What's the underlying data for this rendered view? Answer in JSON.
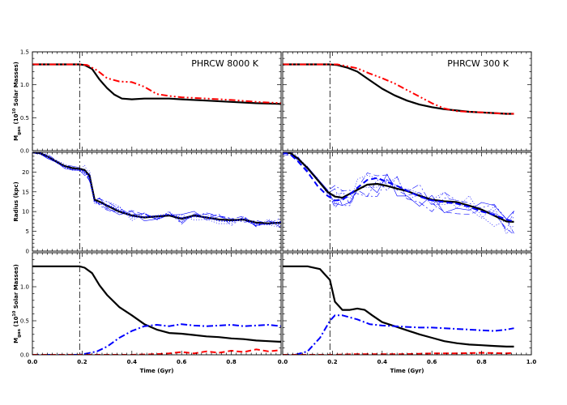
{
  "chart_data": [
    {
      "type": "line",
      "panel": "top-left",
      "title": "PHRCW 8000 K",
      "xlabel": "",
      "ylabel": "M_gas (10^10 Solar Masses)",
      "ylabel_main": "M",
      "ylabel_sub": "gas",
      "ylabel_rest": " (10",
      "ylabel_sup": "10",
      "ylabel_end": " Solar Masses)",
      "xlim": [
        0,
        1.0
      ],
      "ylim": [
        0,
        1.5
      ],
      "yticks": [
        "0.0",
        "0.5",
        "1.0",
        "1.5"
      ],
      "xticks": [],
      "vline": 0.19,
      "series": [
        {
          "color": "#000000",
          "style": "solid",
          "x": [
            0,
            0.05,
            0.1,
            0.15,
            0.19,
            0.21,
            0.24,
            0.27,
            0.3,
            0.33,
            0.36,
            0.4,
            0.45,
            0.5,
            0.55,
            0.6,
            0.7,
            0.8,
            0.9,
            1.0
          ],
          "y": [
            1.31,
            1.31,
            1.31,
            1.31,
            1.31,
            1.3,
            1.24,
            1.08,
            0.95,
            0.85,
            0.79,
            0.78,
            0.79,
            0.79,
            0.79,
            0.78,
            0.76,
            0.74,
            0.72,
            0.71
          ]
        },
        {
          "color": "#ff0000",
          "style": "dashdotdot",
          "x": [
            0,
            0.05,
            0.1,
            0.15,
            0.19,
            0.22,
            0.26,
            0.3,
            0.35,
            0.4,
            0.45,
            0.5,
            0.55,
            0.6,
            0.7,
            0.8,
            0.9,
            1.0
          ],
          "y": [
            1.31,
            1.31,
            1.31,
            1.31,
            1.31,
            1.3,
            1.22,
            1.1,
            1.05,
            1.04,
            0.97,
            0.86,
            0.83,
            0.81,
            0.79,
            0.77,
            0.74,
            0.72
          ]
        }
      ]
    },
    {
      "type": "line",
      "panel": "top-right",
      "title": "PHRCW 300 K",
      "xlabel": "",
      "ylabel": "",
      "xlim": [
        0,
        1.0
      ],
      "ylim": [
        0,
        1.5
      ],
      "yticks": [],
      "xticks": [],
      "vline": 0.19,
      "series": [
        {
          "color": "#000000",
          "style": "solid",
          "x": [
            0,
            0.05,
            0.1,
            0.15,
            0.19,
            0.22,
            0.26,
            0.3,
            0.35,
            0.4,
            0.45,
            0.5,
            0.55,
            0.6,
            0.65,
            0.7,
            0.75,
            0.8,
            0.85,
            0.9,
            0.93
          ],
          "y": [
            1.31,
            1.31,
            1.31,
            1.31,
            1.31,
            1.3,
            1.26,
            1.2,
            1.07,
            0.94,
            0.84,
            0.76,
            0.7,
            0.66,
            0.63,
            0.61,
            0.59,
            0.58,
            0.57,
            0.56,
            0.56
          ]
        },
        {
          "color": "#ff0000",
          "style": "dashdotdot",
          "x": [
            0,
            0.05,
            0.1,
            0.15,
            0.19,
            0.22,
            0.26,
            0.3,
            0.35,
            0.4,
            0.45,
            0.5,
            0.55,
            0.6,
            0.65,
            0.7,
            0.75,
            0.8,
            0.85,
            0.9,
            0.93
          ],
          "y": [
            1.31,
            1.31,
            1.31,
            1.31,
            1.31,
            1.31,
            1.28,
            1.25,
            1.17,
            1.1,
            1.02,
            0.92,
            0.82,
            0.72,
            0.64,
            0.6,
            0.59,
            0.58,
            0.57,
            0.56,
            0.56
          ]
        }
      ]
    },
    {
      "type": "line",
      "panel": "middle-left",
      "title": "",
      "xlabel": "",
      "ylabel": "Radius (kpc)",
      "xlim": [
        0,
        1.0
      ],
      "ylim": [
        0,
        25
      ],
      "yticks": [
        "0",
        "5",
        "10",
        "15",
        "20"
      ],
      "xticks": [],
      "vline": 0.19,
      "series": [
        {
          "color": "#000000",
          "style": "solid",
          "x": [
            0,
            0.03,
            0.06,
            0.1,
            0.13,
            0.16,
            0.19,
            0.21,
            0.23,
            0.25,
            0.27,
            0.3,
            0.35,
            0.4,
            0.45,
            0.5,
            0.55,
            0.6,
            0.65,
            0.7,
            0.75,
            0.8,
            0.85,
            0.9,
            0.95,
            1.0
          ],
          "y": [
            25,
            24.8,
            24,
            22.5,
            21.5,
            21,
            20.8,
            20.5,
            19,
            13,
            12.5,
            11.5,
            10,
            9,
            8.5,
            8.8,
            9,
            8.2,
            9,
            8.5,
            8,
            7.8,
            8,
            7.2,
            7,
            7.2
          ]
        },
        {
          "color": "#0000ff",
          "style": "dotted",
          "x": [
            0,
            0.03,
            0.06,
            0.1,
            0.13,
            0.16,
            0.19,
            0.21,
            0.23,
            0.25,
            0.27,
            0.3,
            0.35,
            0.4,
            0.45,
            0.5,
            0.55,
            0.6,
            0.65,
            0.7,
            0.75,
            0.8,
            0.85,
            0.9,
            0.95,
            1.0
          ],
          "y": [
            25,
            24.8,
            24,
            22.4,
            21.3,
            20.6,
            20.6,
            20.2,
            18.5,
            12.5,
            12,
            11.7,
            10.3,
            8.8,
            8.6,
            8.9,
            9.2,
            8.4,
            8.8,
            8.6,
            7.7,
            7.5,
            8.2,
            6.9,
            6.8,
            7.4
          ]
        }
      ],
      "bundle_count": 6
    },
    {
      "type": "line",
      "panel": "middle-right",
      "title": "",
      "xlabel": "",
      "ylabel": "",
      "xlim": [
        0,
        1.0
      ],
      "ylim": [
        0,
        25
      ],
      "yticks": [],
      "xticks": [],
      "vline": 0.19,
      "series": [
        {
          "color": "#000000",
          "style": "solid",
          "x": [
            0,
            0.03,
            0.06,
            0.1,
            0.14,
            0.18,
            0.21,
            0.24,
            0.27,
            0.3,
            0.34,
            0.38,
            0.42,
            0.46,
            0.5,
            0.55,
            0.6,
            0.65,
            0.7,
            0.75,
            0.8,
            0.85,
            0.9,
            0.93
          ],
          "y": [
            25,
            24.8,
            23.5,
            21,
            18,
            15,
            13.8,
            13.5,
            14.5,
            15.5,
            16.8,
            17,
            16.5,
            15.8,
            15.2,
            14,
            13,
            12.6,
            12.4,
            11.5,
            10.5,
            9,
            7.5,
            7.4
          ]
        },
        {
          "color": "#0000ff",
          "style": "dashed",
          "x": [
            0,
            0.03,
            0.06,
            0.1,
            0.14,
            0.18,
            0.21,
            0.24,
            0.27,
            0.3,
            0.34,
            0.38,
            0.42,
            0.46,
            0.5,
            0.55,
            0.6,
            0.65,
            0.7,
            0.75,
            0.8,
            0.85,
            0.9,
            0.93
          ],
          "y": [
            25,
            24.5,
            22.8,
            20,
            16.5,
            14,
            12.8,
            13,
            14.3,
            16,
            18,
            18.5,
            17.5,
            16.5,
            15.3,
            13.8,
            12.8,
            12.4,
            12,
            11.2,
            10,
            9.2,
            8,
            7.5
          ]
        }
      ],
      "bundle_count": 6
    },
    {
      "type": "line",
      "panel": "bottom-left",
      "title": "",
      "xlabel": "Time (Gyr)",
      "ylabel": "M_gas (10^10 Solar Masses)",
      "ylabel_main": "M",
      "ylabel_sub": "gas",
      "ylabel_rest": " (10",
      "ylabel_sup": "10",
      "ylabel_end": " Solar Masses)",
      "xlim": [
        0,
        1.0
      ],
      "ylim": [
        0,
        1.5
      ],
      "yticks": [
        "0.0",
        "0.5",
        "1.0"
      ],
      "xticks": [
        "0.0",
        "0.2",
        "0.4",
        "0.6",
        "0.8"
      ],
      "vline": 0.19,
      "series": [
        {
          "color": "#000000",
          "style": "solid",
          "x": [
            0,
            0.05,
            0.1,
            0.15,
            0.19,
            0.21,
            0.24,
            0.27,
            0.3,
            0.35,
            0.4,
            0.45,
            0.5,
            0.55,
            0.6,
            0.65,
            0.7,
            0.75,
            0.8,
            0.85,
            0.9,
            0.95,
            1.0
          ],
          "y": [
            1.3,
            1.3,
            1.3,
            1.3,
            1.3,
            1.28,
            1.2,
            1.02,
            0.88,
            0.7,
            0.58,
            0.45,
            0.37,
            0.32,
            0.31,
            0.29,
            0.27,
            0.26,
            0.24,
            0.23,
            0.21,
            0.2,
            0.19
          ]
        },
        {
          "color": "#0000ff",
          "style": "dashdot",
          "x": [
            0,
            0.05,
            0.1,
            0.15,
            0.19,
            0.22,
            0.26,
            0.3,
            0.35,
            0.4,
            0.45,
            0.5,
            0.55,
            0.6,
            0.65,
            0.7,
            0.75,
            0.8,
            0.85,
            0.9,
            0.95,
            1.0
          ],
          "y": [
            0,
            0,
            0,
            0,
            0,
            0.02,
            0.05,
            0.12,
            0.25,
            0.35,
            0.42,
            0.44,
            0.42,
            0.45,
            0.43,
            0.42,
            0.43,
            0.44,
            0.42,
            0.43,
            0.44,
            0.42
          ]
        },
        {
          "color": "#ff0000",
          "style": "dashed",
          "x": [
            0,
            0.1,
            0.2,
            0.3,
            0.4,
            0.5,
            0.55,
            0.6,
            0.65,
            0.7,
            0.75,
            0.8,
            0.85,
            0.9,
            0.95,
            1.0
          ],
          "y": [
            0,
            0,
            0,
            0,
            0,
            0.01,
            0.02,
            0.04,
            0.02,
            0.05,
            0.03,
            0.06,
            0.04,
            0.08,
            0.05,
            0.07
          ]
        }
      ]
    },
    {
      "type": "line",
      "panel": "bottom-right",
      "title": "",
      "xlabel": "Time (Gyr)",
      "ylabel": "",
      "xlim": [
        0,
        1.0
      ],
      "ylim": [
        0,
        1.5
      ],
      "yticks": [],
      "xticks": [
        "0.0",
        "0.2",
        "0.4",
        "0.6",
        "0.8",
        "1.0"
      ],
      "vline": 0.19,
      "series": [
        {
          "color": "#000000",
          "style": "solid",
          "x": [
            0,
            0.05,
            0.1,
            0.15,
            0.19,
            0.21,
            0.24,
            0.27,
            0.3,
            0.33,
            0.36,
            0.4,
            0.45,
            0.5,
            0.55,
            0.6,
            0.65,
            0.7,
            0.75,
            0.8,
            0.85,
            0.9,
            0.93
          ],
          "y": [
            1.3,
            1.3,
            1.3,
            1.26,
            1.1,
            0.78,
            0.66,
            0.66,
            0.68,
            0.66,
            0.58,
            0.48,
            0.42,
            0.36,
            0.3,
            0.25,
            0.2,
            0.17,
            0.15,
            0.14,
            0.13,
            0.12,
            0.12
          ]
        },
        {
          "color": "#0000ff",
          "style": "dashdot",
          "x": [
            0,
            0.05,
            0.1,
            0.15,
            0.19,
            0.21,
            0.24,
            0.27,
            0.3,
            0.35,
            0.4,
            0.45,
            0.5,
            0.55,
            0.6,
            0.65,
            0.7,
            0.75,
            0.8,
            0.85,
            0.9,
            0.93
          ],
          "y": [
            0,
            0,
            0.05,
            0.25,
            0.5,
            0.58,
            0.58,
            0.55,
            0.52,
            0.45,
            0.43,
            0.42,
            0.41,
            0.4,
            0.4,
            0.39,
            0.38,
            0.37,
            0.36,
            0.35,
            0.37,
            0.39
          ]
        },
        {
          "color": "#ff0000",
          "style": "dashed",
          "x": [
            0,
            0.1,
            0.2,
            0.3,
            0.4,
            0.5,
            0.6,
            0.7,
            0.8,
            0.9,
            0.93
          ],
          "y": [
            0,
            0,
            0,
            0.01,
            0.01,
            0.01,
            0.02,
            0.02,
            0.03,
            0.02,
            0.03
          ]
        }
      ]
    }
  ]
}
